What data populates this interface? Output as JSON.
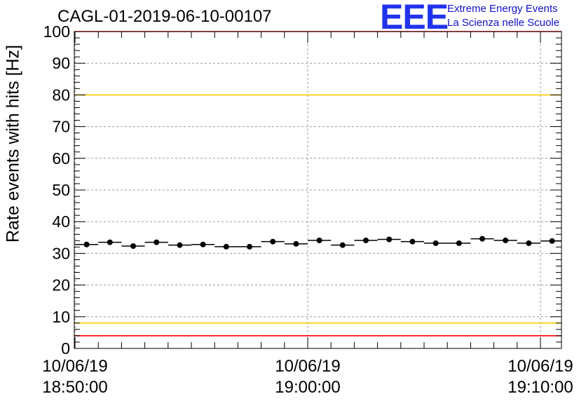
{
  "chart_data": {
    "type": "scatter",
    "title": "CAGL-01-2019-06-10-00107",
    "ylabel": "Rate events with hits [Hz]",
    "xlabel": "",
    "ylim": [
      0,
      100
    ],
    "y_ticks": [
      "0",
      "10",
      "20",
      "30",
      "40",
      "50",
      "60",
      "70",
      "80",
      "90",
      "100"
    ],
    "x_ticks": [
      {
        "date": "10/06/19",
        "time": "18:50:00"
      },
      {
        "date": "10/06/19",
        "time": "19:00:00"
      },
      {
        "date": "10/06/19",
        "time": "19:10:00"
      }
    ],
    "x_range": [
      "18:50:00",
      "19:10:30"
    ],
    "grid": true,
    "reference_lines": [
      {
        "y": 100,
        "color": "#ff0000"
      },
      {
        "y": 80,
        "color": "#ffcc00"
      },
      {
        "y": 8,
        "color": "#ffcc00"
      },
      {
        "y": 4,
        "color": "#ff0000"
      }
    ],
    "series": [
      {
        "x": [
          "18:50:30",
          "18:51:30",
          "18:52:30",
          "18:53:30",
          "18:54:30",
          "18:55:30",
          "18:56:30",
          "18:57:30",
          "18:58:30",
          "18:59:30",
          "19:00:30",
          "19:01:30",
          "19:02:30",
          "19:03:30",
          "19:04:30",
          "19:05:30",
          "19:06:30",
          "19:07:30",
          "19:08:30",
          "19:09:30",
          "19:10:30"
        ],
        "values": [
          32.8,
          33.5,
          32.3,
          33.5,
          32.6,
          32.8,
          32.1,
          32.1,
          33.7,
          33.0,
          34.1,
          32.6,
          34.1,
          34.4,
          33.7,
          33.2,
          33.2,
          34.6,
          34.1,
          33.2,
          33.9
        ]
      }
    ],
    "marker_color": "#000000"
  },
  "logo": {
    "mark": "EEE",
    "line1": "Extreme Energy Events",
    "line2": "La Scienza nelle Scuole"
  }
}
